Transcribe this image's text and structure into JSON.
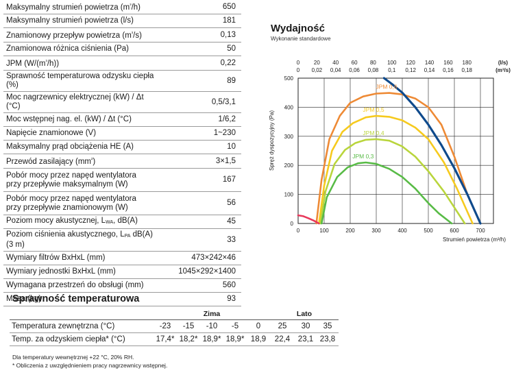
{
  "specs": {
    "rows": [
      {
        "label": "Maksymalny strumień powietrza (m³/h)",
        "value": "650"
      },
      {
        "label": "Maksymalny strumień powietrza (l/s)",
        "value": "181"
      },
      {
        "label": "Znamionowy przepływ powietrza (m³/s)",
        "value": "0,13"
      },
      {
        "label": "Znamionowa różnica ciśnienia (Pa)",
        "value": "50"
      },
      {
        "label": "JPM (W/(m³/h))",
        "value": "0,22"
      },
      {
        "label": "Sprawność temperaturowa odzysku ciepła (%)",
        "value": "89"
      },
      {
        "label": "Moc nagrzewnicy elektrycznej (kW) / Δt (°C)",
        "value": "0,5/3,1"
      },
      {
        "label": "Moc wstępnej nag. el. (kW) / Δt (°C)",
        "value": "1/6,2"
      },
      {
        "label": "Napięcie znamionowe (V)",
        "value": "1~230"
      },
      {
        "label": "Maksymalny prąd obciążenia HE (A)",
        "value": "10"
      },
      {
        "label": "Przewód zasilający (mm²)",
        "value": "3×1,5"
      },
      {
        "label_l1": "Pobór mocy przez napęd wentylatora",
        "label_l2": "przy przepływie maksymalnym (W)",
        "value": "167"
      },
      {
        "label_l1": "Pobór mocy przez napęd wentylatora",
        "label_l2": "przy przepływie znamionowym (W)",
        "value": "56"
      },
      {
        "label_pre": "Poziom mocy akustycznej, L",
        "label_sub": "WA",
        "label_post": ", dB(A)",
        "value": "45"
      },
      {
        "label_pre": "Poziom ciśnienia akustycznego, L",
        "label_sub": "PA",
        "label_post": " dB(A) (3 m)",
        "value": "33"
      },
      {
        "label": "Wymiary filtrów BxHxL (mm)",
        "value": "473×242×46"
      },
      {
        "label": "Wymiary jednostki BxHxL (mm)",
        "value": "1045×292×1400"
      },
      {
        "label": "Wymagana przestrzeń do obsługi (mm)",
        "value": "560"
      },
      {
        "label": "Masa (kg)",
        "value": "93"
      }
    ]
  },
  "chart_data": {
    "type": "line",
    "title": "Wydajność",
    "subtitle": "Wykonanie standardowe",
    "xlabel": "Strumień powietrza (m³/h)",
    "ylabel": "Spręż dyspozycyjny (Pa)",
    "xlim": [
      0,
      750
    ],
    "ylim": [
      0,
      500
    ],
    "x_ticks": [
      "0",
      "100",
      "200",
      "300",
      "400",
      "500",
      "600",
      "700"
    ],
    "y_ticks": [
      "0",
      "100",
      "200",
      "300",
      "400",
      "500"
    ],
    "top_axis_ls": [
      "0",
      "20",
      "40",
      "60",
      "80",
      "100",
      "120",
      "140",
      "160",
      "180"
    ],
    "top_axis_ls_unit": "(l/s)",
    "top_axis_m3s": [
      "0",
      "0,02",
      "0,04",
      "0,06",
      "0,08",
      "0,1",
      "0,12",
      "0,14",
      "0,16",
      "0,18"
    ],
    "top_axis_m3s_unit": "(m³/s)",
    "grid": true,
    "series": [
      {
        "name": "JPM 0,6",
        "color": "#ee8a35",
        "x": [
          70,
          90,
          120,
          160,
          200,
          250,
          300,
          350,
          400,
          450,
          500,
          550,
          600,
          650,
          700
        ],
        "y": [
          0,
          150,
          290,
          370,
          415,
          437,
          447,
          449,
          444,
          430,
          400,
          340,
          230,
          100,
          0
        ]
      },
      {
        "name": "JPM 0,5",
        "color": "#f6ca1e",
        "x": [
          80,
          100,
          130,
          170,
          210,
          260,
          300,
          350,
          400,
          450,
          500,
          560,
          610,
          670
        ],
        "y": [
          0,
          130,
          250,
          315,
          345,
          365,
          370,
          367,
          355,
          330,
          290,
          210,
          120,
          0
        ]
      },
      {
        "name": "JPM 0,4",
        "color": "#b9d53c",
        "x": [
          85,
          105,
          140,
          180,
          220,
          260,
          300,
          350,
          400,
          450,
          500,
          560,
          640
        ],
        "y": [
          0,
          110,
          205,
          253,
          277,
          288,
          290,
          285,
          265,
          230,
          180,
          110,
          0
        ]
      },
      {
        "name": "JPM 0,3",
        "color": "#58bb46",
        "x": [
          90,
          110,
          150,
          190,
          230,
          260,
          300,
          350,
          400,
          450,
          500,
          540,
          590
        ],
        "y": [
          0,
          90,
          160,
          193,
          207,
          210,
          205,
          188,
          160,
          120,
          70,
          35,
          0
        ]
      },
      {
        "name": "",
        "color": "#0f4a8c",
        "x": [
          330,
          360,
          400,
          450,
          500,
          550,
          600,
          650,
          700
        ],
        "y": [
          500,
          480,
          450,
          400,
          340,
          270,
          190,
          100,
          0
        ]
      },
      {
        "name": "",
        "color": "#e8385a",
        "x": [
          0,
          20,
          40,
          60,
          80
        ],
        "y": [
          28,
          25,
          18,
          10,
          0
        ]
      }
    ]
  },
  "efficiency": {
    "title": "Sprawność temperaturowa",
    "winter_label": "Zima",
    "summer_label": "Lato",
    "outdoor_label": "Temperatura zewnętrzna (°C)",
    "outdoor_values": [
      "-23",
      "-15",
      "-10",
      "-5",
      "0",
      "25",
      "30",
      "35"
    ],
    "recovered_label": "Temp. za odzyskiem ciepła* (°C)",
    "recovered_values": [
      "17,4*",
      "18,2*",
      "18,9*",
      "18,9*",
      "18,9",
      "22,4",
      "23,1",
      "23,8"
    ]
  },
  "notes": {
    "line1": "Dla temperatury wewnętrznej +22 °C, 20% RH.",
    "line2": "* Obliczenia z uwzględnieniem pracy nagrzewnicy wstępnej."
  }
}
